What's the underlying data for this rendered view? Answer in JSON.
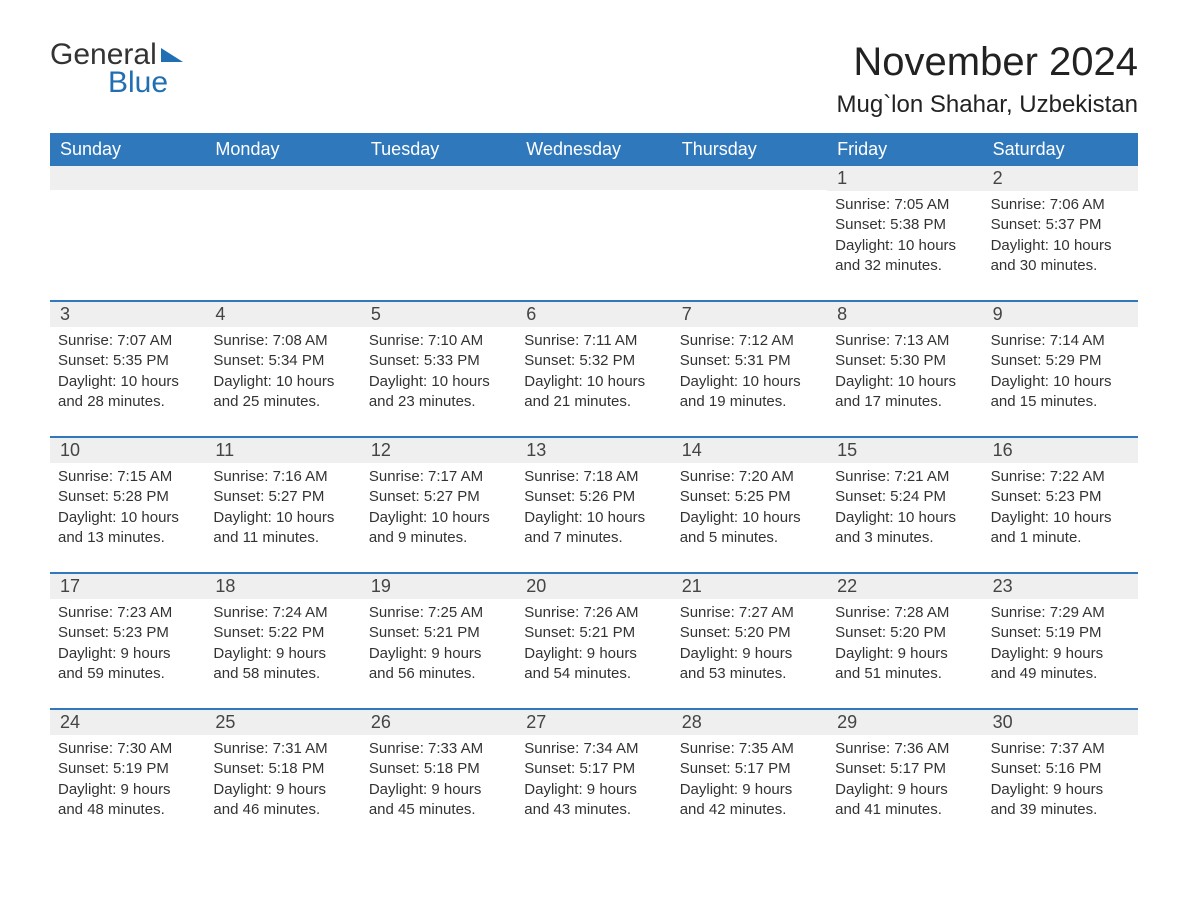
{
  "logo": {
    "word1": "General",
    "word2": "Blue"
  },
  "title": "November 2024",
  "location": "Mug`lon Shahar, Uzbekistan",
  "colors": {
    "header_bg": "#2f78bc",
    "header_text": "#ffffff",
    "row_stripe": "#efefef",
    "divider": "#2f78bc",
    "text": "#333333",
    "logo_accent": "#1f6fb2",
    "background": "#ffffff"
  },
  "typography": {
    "title_fontsize": 40,
    "location_fontsize": 24,
    "dayhead_fontsize": 18,
    "daynum_fontsize": 18,
    "body_fontsize": 15,
    "font_family": "Segoe UI"
  },
  "day_names": [
    "Sunday",
    "Monday",
    "Tuesday",
    "Wednesday",
    "Thursday",
    "Friday",
    "Saturday"
  ],
  "labels": {
    "sunrise": "Sunrise:",
    "sunset": "Sunset:",
    "daylight": "Daylight:"
  },
  "weeks": [
    [
      null,
      null,
      null,
      null,
      null,
      {
        "d": "1",
        "sunrise": "7:05 AM",
        "sunset": "5:38 PM",
        "daylight": "10 hours and 32 minutes."
      },
      {
        "d": "2",
        "sunrise": "7:06 AM",
        "sunset": "5:37 PM",
        "daylight": "10 hours and 30 minutes."
      }
    ],
    [
      {
        "d": "3",
        "sunrise": "7:07 AM",
        "sunset": "5:35 PM",
        "daylight": "10 hours and 28 minutes."
      },
      {
        "d": "4",
        "sunrise": "7:08 AM",
        "sunset": "5:34 PM",
        "daylight": "10 hours and 25 minutes."
      },
      {
        "d": "5",
        "sunrise": "7:10 AM",
        "sunset": "5:33 PM",
        "daylight": "10 hours and 23 minutes."
      },
      {
        "d": "6",
        "sunrise": "7:11 AM",
        "sunset": "5:32 PM",
        "daylight": "10 hours and 21 minutes."
      },
      {
        "d": "7",
        "sunrise": "7:12 AM",
        "sunset": "5:31 PM",
        "daylight": "10 hours and 19 minutes."
      },
      {
        "d": "8",
        "sunrise": "7:13 AM",
        "sunset": "5:30 PM",
        "daylight": "10 hours and 17 minutes."
      },
      {
        "d": "9",
        "sunrise": "7:14 AM",
        "sunset": "5:29 PM",
        "daylight": "10 hours and 15 minutes."
      }
    ],
    [
      {
        "d": "10",
        "sunrise": "7:15 AM",
        "sunset": "5:28 PM",
        "daylight": "10 hours and 13 minutes."
      },
      {
        "d": "11",
        "sunrise": "7:16 AM",
        "sunset": "5:27 PM",
        "daylight": "10 hours and 11 minutes."
      },
      {
        "d": "12",
        "sunrise": "7:17 AM",
        "sunset": "5:27 PM",
        "daylight": "10 hours and 9 minutes."
      },
      {
        "d": "13",
        "sunrise": "7:18 AM",
        "sunset": "5:26 PM",
        "daylight": "10 hours and 7 minutes."
      },
      {
        "d": "14",
        "sunrise": "7:20 AM",
        "sunset": "5:25 PM",
        "daylight": "10 hours and 5 minutes."
      },
      {
        "d": "15",
        "sunrise": "7:21 AM",
        "sunset": "5:24 PM",
        "daylight": "10 hours and 3 minutes."
      },
      {
        "d": "16",
        "sunrise": "7:22 AM",
        "sunset": "5:23 PM",
        "daylight": "10 hours and 1 minute."
      }
    ],
    [
      {
        "d": "17",
        "sunrise": "7:23 AM",
        "sunset": "5:23 PM",
        "daylight": "9 hours and 59 minutes."
      },
      {
        "d": "18",
        "sunrise": "7:24 AM",
        "sunset": "5:22 PM",
        "daylight": "9 hours and 58 minutes."
      },
      {
        "d": "19",
        "sunrise": "7:25 AM",
        "sunset": "5:21 PM",
        "daylight": "9 hours and 56 minutes."
      },
      {
        "d": "20",
        "sunrise": "7:26 AM",
        "sunset": "5:21 PM",
        "daylight": "9 hours and 54 minutes."
      },
      {
        "d": "21",
        "sunrise": "7:27 AM",
        "sunset": "5:20 PM",
        "daylight": "9 hours and 53 minutes."
      },
      {
        "d": "22",
        "sunrise": "7:28 AM",
        "sunset": "5:20 PM",
        "daylight": "9 hours and 51 minutes."
      },
      {
        "d": "23",
        "sunrise": "7:29 AM",
        "sunset": "5:19 PM",
        "daylight": "9 hours and 49 minutes."
      }
    ],
    [
      {
        "d": "24",
        "sunrise": "7:30 AM",
        "sunset": "5:19 PM",
        "daylight": "9 hours and 48 minutes."
      },
      {
        "d": "25",
        "sunrise": "7:31 AM",
        "sunset": "5:18 PM",
        "daylight": "9 hours and 46 minutes."
      },
      {
        "d": "26",
        "sunrise": "7:33 AM",
        "sunset": "5:18 PM",
        "daylight": "9 hours and 45 minutes."
      },
      {
        "d": "27",
        "sunrise": "7:34 AM",
        "sunset": "5:17 PM",
        "daylight": "9 hours and 43 minutes."
      },
      {
        "d": "28",
        "sunrise": "7:35 AM",
        "sunset": "5:17 PM",
        "daylight": "9 hours and 42 minutes."
      },
      {
        "d": "29",
        "sunrise": "7:36 AM",
        "sunset": "5:17 PM",
        "daylight": "9 hours and 41 minutes."
      },
      {
        "d": "30",
        "sunrise": "7:37 AM",
        "sunset": "5:16 PM",
        "daylight": "9 hours and 39 minutes."
      }
    ]
  ]
}
